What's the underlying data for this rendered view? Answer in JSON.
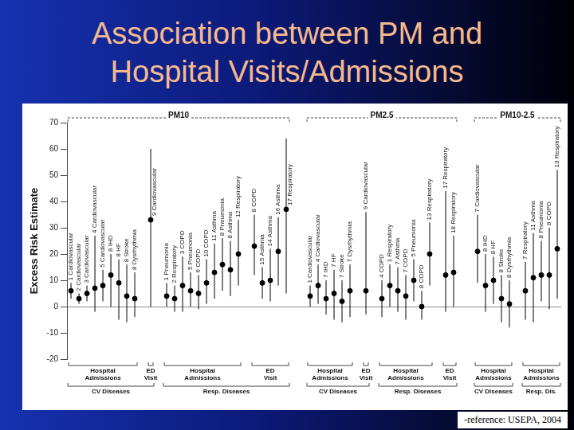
{
  "chart_data": {
    "type": "scatter",
    "title": "Association between PM and Hospital Visits/Admissions",
    "y_label": "Excess Risk Estimate",
    "source": "-reference: USEPA, 2004",
    "ylim": [
      -20,
      70
    ],
    "yticks": [
      -20,
      -10,
      0,
      10,
      20,
      30,
      40,
      50,
      60,
      70
    ],
    "grid": false,
    "tick_labels": "y",
    "color": "#000000",
    "marker": "circle",
    "panels": [
      {
        "name": "PM10",
        "groups": [
          {
            "name": "CV Diseases",
            "sets": [
              {
                "name": "Hospital Admissions",
                "categories": [
                  "1 Cardiovascular",
                  "2 Cardiovascular",
                  "3 Cardiovascular",
                  "4 Cardiovascular",
                  "5 Cardiovascular",
                  "8 IHD",
                  "8 HF",
                  "8 Stroke",
                  "8 Dysrhythmia"
                ],
                "values": [
                  6,
                  3,
                  5,
                  7,
                  8,
                  12,
                  9,
                  4,
                  3
                ],
                "ci_low": [
                  3,
                  1,
                  2,
                  -2,
                  2,
                  0,
                  -5,
                  -6,
                  -4
                ],
                "ci_high": [
                  9,
                  5,
                  8,
                  27,
                  14,
                  20,
                  18,
                  16,
                  13
                ]
              },
              {
                "name": "ED Visit",
                "categories": [
                  "9 Cardiovascular"
                ],
                "values": [
                  33
                ],
                "ci_low": [
                  0
                ],
                "ci_high": [
                  60
                ]
              }
            ]
          },
          {
            "name": "Resp. Diseases",
            "sets": [
              {
                "name": "Hospital Admissions",
                "categories": [
                  "1 Pneumonia",
                  "2 Respiratory",
                  "3 COPD",
                  "5 Pneumonia",
                  "6 COPD",
                  "10 COPD",
                  "11 Asthma",
                  "8 Pneumonia",
                  "8 Asthma",
                  "12 Respiratory"
                ],
                "values": [
                  4,
                  3,
                  8,
                  6,
                  5,
                  9,
                  13,
                  16,
                  14,
                  20
                ],
                "ci_low": [
                  0,
                  -2,
                  -2,
                  0,
                  -1,
                  1,
                  3,
                  6,
                  4,
                  8
                ],
                "ci_high": [
                  9,
                  8,
                  19,
                  13,
                  12,
                  18,
                  24,
                  26,
                  25,
                  33
                ]
              },
              {
                "name": "ED Visit",
                "categories": [
                  "8 COPD",
                  "15 Asthma",
                  "14 Asthma",
                  "16 Asthma",
                  "17 Respiratory"
                ],
                "values": [
                  23,
                  9,
                  10,
                  21,
                  37
                ],
                "ci_low": [
                  12,
                  3,
                  2,
                  8,
                  5
                ],
                "ci_high": [
                  35,
                  15,
                  22,
                  34,
                  64
                ]
              }
            ]
          }
        ]
      },
      {
        "name": "PM2.5",
        "groups": [
          {
            "name": "CV Diseases",
            "sets": [
              {
                "name": "Hospital Admissions",
                "categories": [
                  "1 Cardiovascular",
                  "4 Cardiovascular",
                  "7 IHD",
                  "7 HF",
                  "7 Stroke",
                  "7 Dysrhythmia"
                ],
                "values": [
                  4,
                  8,
                  3,
                  5,
                  2,
                  6
                ],
                "ci_low": [
                  0,
                  1,
                  -3,
                  -5,
                  -6,
                  -4
                ],
                "ci_high": [
                  8,
                  16,
                  10,
                  14,
                  10,
                  16
                ]
              },
              {
                "name": "ED Visit",
                "categories": [
                  "9 Cardiovascular"
                ],
                "values": [
                  6
                ],
                "ci_low": [
                  -3
                ],
                "ci_high": [
                  36
                ]
              }
            ]
          },
          {
            "name": "Resp. Diseases",
            "sets": [
              {
                "name": "Hospital Admissions",
                "categories": [
                  "4 COPD",
                  "1 Respiratory",
                  "7 Asthma",
                  "7 COPD",
                  "5 Pneumonia",
                  "8 COPD",
                  "13 Respiratory"
                ],
                "values": [
                  3,
                  8,
                  6,
                  4,
                  10,
                  0,
                  20
                ],
                "ci_low": [
                  -4,
                  0,
                  -2,
                  -5,
                  2,
                  -5,
                  8
                ],
                "ci_high": [
                  10,
                  16,
                  15,
                  12,
                  18,
                  6,
                  32
                ]
              },
              {
                "name": "ED Visit",
                "categories": [
                  "17 Respiratory",
                  "18 Respiratory"
                ],
                "values": [
                  12,
                  13
                ],
                "ci_low": [
                  -2,
                  0
                ],
                "ci_high": [
                  44,
                  27
                ]
              }
            ]
          }
        ]
      },
      {
        "name": "PM10-2.5",
        "groups": [
          {
            "name": "CV Diseases",
            "sets": [
              {
                "name": "Hospital Admissions",
                "categories": [
                  "7 Cardiovascular",
                  "8 IHD",
                  "8 HF",
                  "8 Stroke",
                  "8 Dysrhythmia"
                ],
                "values": [
                  21,
                  8,
                  10,
                  3,
                  1
                ],
                "ci_low": [
                  9,
                  -2,
                  1,
                  -6,
                  -8
                ],
                "ci_high": [
                  35,
                  20,
                  19,
                  12,
                  10
                ]
              }
            ]
          },
          {
            "name": "Resp. Dis.",
            "sets": [
              {
                "name": "Hospital Admissions",
                "categories": [
                  "7 Respiratory",
                  "11 Asthma",
                  "8 Pneumonia",
                  "8 COPD",
                  "13 Respiratory"
                ],
                "values": [
                  6,
                  11,
                  12,
                  12,
                  22
                ],
                "ci_low": [
                  -5,
                  -6,
                  2,
                  -1,
                  3
                ],
                "ci_high": [
                  17,
                  28,
                  25,
                  30,
                  52
                ]
              }
            ]
          }
        ]
      }
    ]
  }
}
